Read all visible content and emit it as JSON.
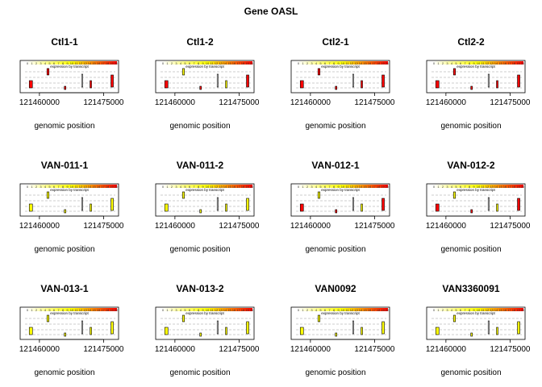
{
  "title": "Gene OASL",
  "legend": {
    "label": "expression by transcript",
    "scale_labels": [
      "0",
      "1",
      "2",
      "3",
      "4",
      "5",
      "6",
      "7",
      "8",
      "9",
      "10",
      "11",
      "12",
      "13",
      "14",
      "15",
      "16",
      "17",
      "18",
      "19",
      "20"
    ],
    "colors": [
      "#ffffff",
      "#ffff00",
      "#ff0000"
    ]
  },
  "chart_data": [
    {
      "type": "gene-structure",
      "title": "Ctl1-1",
      "xlabel": "genomic position",
      "ticks": [
        121460000,
        121475000
      ],
      "transcripts": 4,
      "exons": [
        121458000,
        121462000,
        121466000,
        121470000,
        121472000,
        121477000
      ],
      "levels": [
        "red",
        "red",
        "red",
        "white",
        "red",
        "red"
      ]
    },
    {
      "type": "gene-structure",
      "title": "Ctl1-2",
      "xlabel": "genomic position",
      "ticks": [
        121460000,
        121475000
      ],
      "transcripts": 4,
      "exons": [
        121458000,
        121462000,
        121466000,
        121470000,
        121472000,
        121477000
      ],
      "levels": [
        "red",
        "yellow",
        "red",
        "white",
        "yellow",
        "red"
      ]
    },
    {
      "type": "gene-structure",
      "title": "Ctl2-1",
      "xlabel": "genomic position",
      "ticks": [
        121460000,
        121475000
      ],
      "transcripts": 4,
      "exons": [
        121458000,
        121462000,
        121466000,
        121470000,
        121472000,
        121477000
      ],
      "levels": [
        "red",
        "red",
        "red",
        "white",
        "red",
        "red"
      ]
    },
    {
      "type": "gene-structure",
      "title": "Ctl2-2",
      "xlabel": "genomic position",
      "ticks": [
        121460000,
        121475000
      ],
      "transcripts": 4,
      "exons": [
        121458000,
        121462000,
        121466000,
        121470000,
        121472000,
        121477000
      ],
      "levels": [
        "red",
        "red",
        "red",
        "white",
        "red",
        "red"
      ]
    },
    {
      "type": "gene-structure",
      "title": "VAN-011-1",
      "xlabel": "genomic position",
      "ticks": [
        121460000,
        121475000
      ],
      "transcripts": 4,
      "exons": [
        121458000,
        121462000,
        121466000,
        121470000,
        121472000,
        121477000
      ],
      "levels": [
        "yellow",
        "yellow",
        "yellow",
        "white",
        "yellow",
        "yellow"
      ]
    },
    {
      "type": "gene-structure",
      "title": "VAN-011-2",
      "xlabel": "genomic position",
      "ticks": [
        121460000,
        121475000
      ],
      "transcripts": 4,
      "exons": [
        121458000,
        121462000,
        121466000,
        121470000,
        121472000,
        121477000
      ],
      "levels": [
        "yellow",
        "yellow",
        "yellow",
        "white",
        "yellow",
        "yellow"
      ]
    },
    {
      "type": "gene-structure",
      "title": "VAN-012-1",
      "xlabel": "genomic position",
      "ticks": [
        121460000,
        121475000
      ],
      "transcripts": 4,
      "exons": [
        121458000,
        121462000,
        121466000,
        121470000,
        121472000,
        121477000
      ],
      "levels": [
        "red",
        "yellow",
        "red",
        "white",
        "yellow",
        "red"
      ]
    },
    {
      "type": "gene-structure",
      "title": "VAN-012-2",
      "xlabel": "genomic position",
      "ticks": [
        121460000,
        121475000
      ],
      "transcripts": 4,
      "exons": [
        121458000,
        121462000,
        121466000,
        121470000,
        121472000,
        121477000
      ],
      "levels": [
        "red",
        "yellow",
        "red",
        "white",
        "yellow",
        "red"
      ]
    },
    {
      "type": "gene-structure",
      "title": "VAN-013-1",
      "xlabel": "genomic position",
      "ticks": [
        121460000,
        121475000
      ],
      "transcripts": 4,
      "exons": [
        121458000,
        121462000,
        121466000,
        121470000,
        121472000,
        121477000
      ],
      "levels": [
        "yellow",
        "yellow",
        "yellow",
        "white",
        "yellow",
        "yellow"
      ]
    },
    {
      "type": "gene-structure",
      "title": "VAN-013-2",
      "xlabel": "genomic position",
      "ticks": [
        121460000,
        121475000
      ],
      "transcripts": 4,
      "exons": [
        121458000,
        121462000,
        121466000,
        121470000,
        121472000,
        121477000
      ],
      "levels": [
        "yellow",
        "yellow",
        "yellow",
        "white",
        "yellow",
        "yellow"
      ]
    },
    {
      "type": "gene-structure",
      "title": "VAN0092",
      "xlabel": "genomic position",
      "ticks": [
        121460000,
        121475000
      ],
      "transcripts": 4,
      "exons": [
        121458000,
        121462000,
        121466000,
        121470000,
        121472000,
        121477000
      ],
      "levels": [
        "yellow",
        "yellow",
        "yellow",
        "white",
        "yellow",
        "yellow"
      ]
    },
    {
      "type": "gene-structure",
      "title": "VAN3360091",
      "xlabel": "genomic position",
      "ticks": [
        121460000,
        121475000
      ],
      "transcripts": 4,
      "exons": [
        121458000,
        121462000,
        121466000,
        121470000,
        121472000,
        121477000
      ],
      "levels": [
        "yellow",
        "yellow",
        "yellow",
        "white",
        "yellow",
        "yellow"
      ]
    }
  ]
}
